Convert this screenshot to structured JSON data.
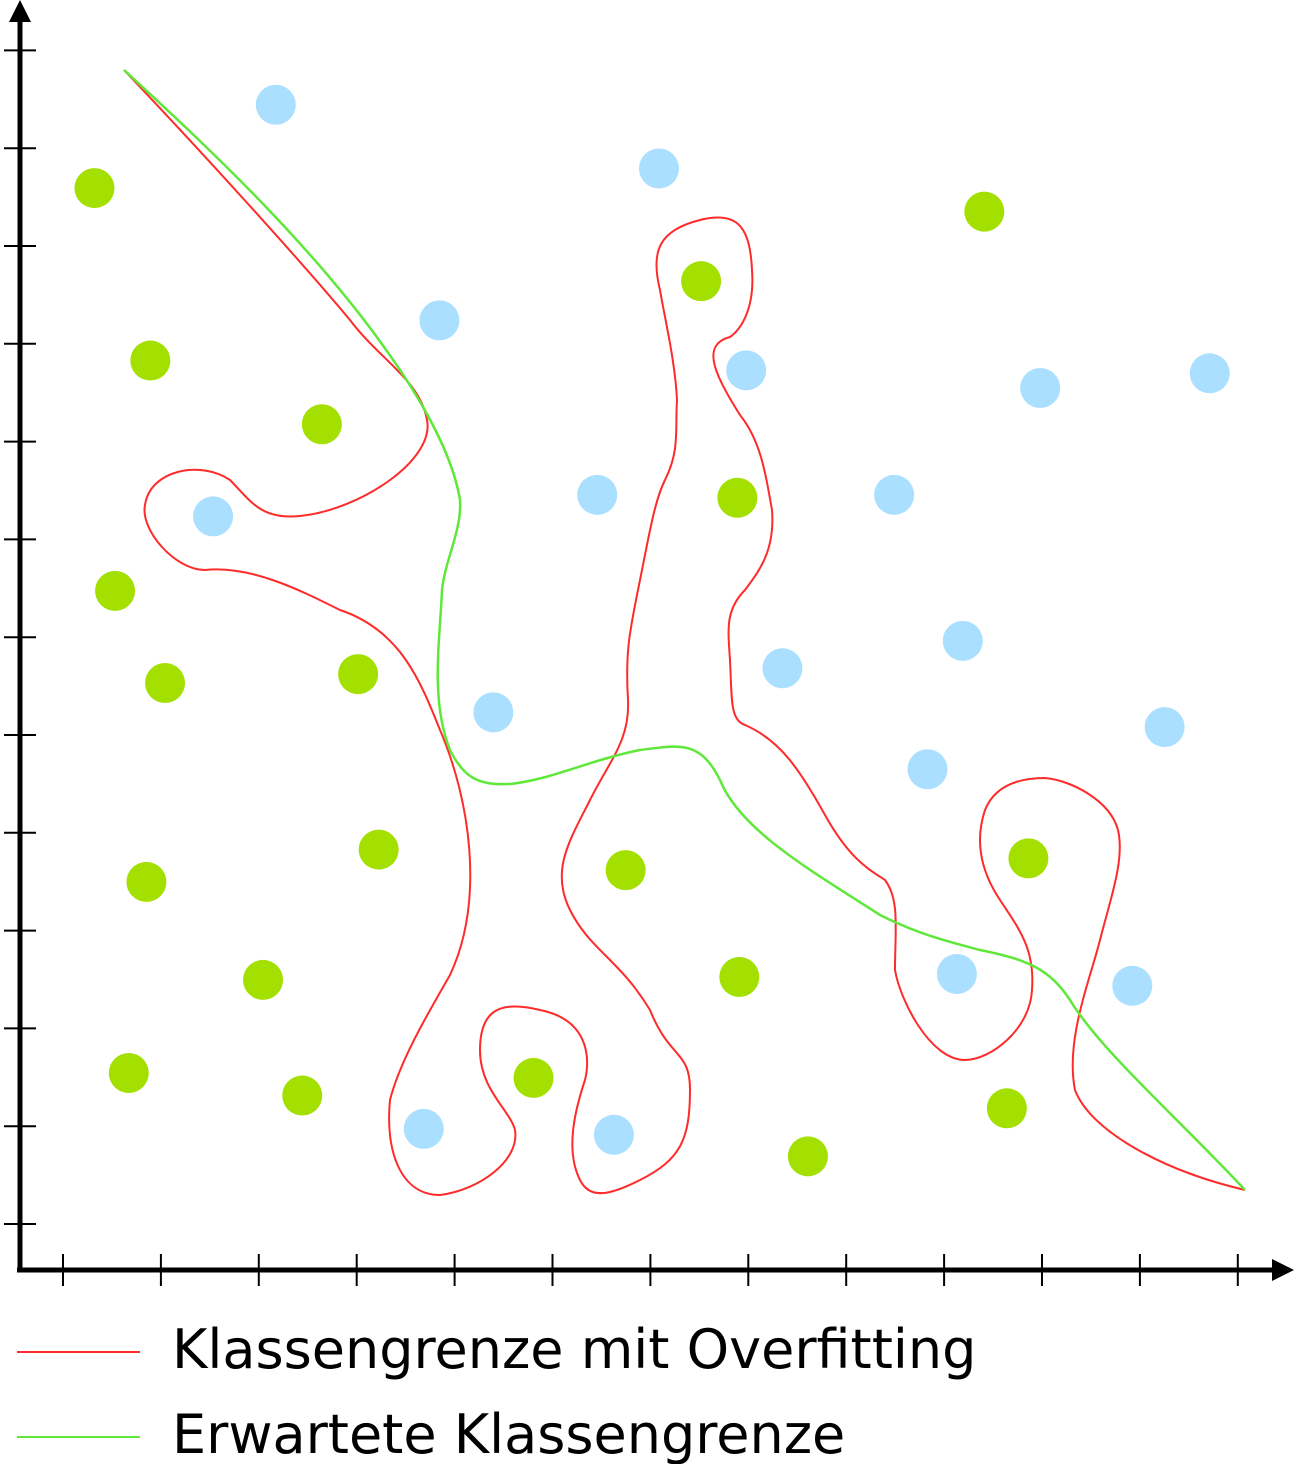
{
  "chart_data": {
    "type": "scatter",
    "title": "",
    "xlabel": "",
    "ylabel": "",
    "xlim": [
      0,
      12.9
    ],
    "ylim": [
      0,
      12.9
    ],
    "grid": false,
    "tick_labels": false,
    "legend_placement": "bottom",
    "point_series": [
      {
        "color": "#aadfff",
        "points": [
          [
            2.61,
            11.89
          ],
          [
            6.52,
            11.24
          ],
          [
            4.28,
            9.69
          ],
          [
            7.41,
            9.18
          ],
          [
            10.41,
            9.0
          ],
          [
            12.14,
            9.15
          ],
          [
            1.97,
            7.69
          ],
          [
            5.89,
            7.91
          ],
          [
            8.92,
            7.91
          ],
          [
            9.62,
            6.42
          ],
          [
            7.78,
            6.14
          ],
          [
            4.83,
            5.69
          ],
          [
            11.68,
            5.54
          ],
          [
            9.26,
            5.11
          ],
          [
            9.56,
            3.02
          ],
          [
            11.35,
            2.9
          ],
          [
            4.12,
            1.44
          ],
          [
            6.06,
            1.38
          ]
        ]
      },
      {
        "color": "#a3e000",
        "points": [
          [
            0.76,
            11.04
          ],
          [
            9.84,
            10.8
          ],
          [
            6.95,
            10.09
          ],
          [
            1.33,
            9.28
          ],
          [
            3.08,
            8.63
          ],
          [
            7.32,
            7.88
          ],
          [
            0.97,
            6.93
          ],
          [
            1.48,
            5.99
          ],
          [
            3.45,
            6.08
          ],
          [
            3.66,
            4.29
          ],
          [
            6.18,
            4.08
          ],
          [
            1.29,
            3.96
          ],
          [
            10.29,
            4.2
          ],
          [
            2.48,
            2.96
          ],
          [
            7.34,
            2.99
          ],
          [
            1.11,
            2.01
          ],
          [
            2.88,
            1.78
          ],
          [
            5.24,
            1.96
          ],
          [
            10.07,
            1.65
          ],
          [
            8.04,
            1.16
          ]
        ]
      }
    ],
    "series": [
      {
        "name": "Klassengrenze mit Overfitting",
        "color": "#ff2a2a"
      },
      {
        "name": "Erwartete Klassengrenze",
        "color": "#5fe83a"
      }
    ]
  }
}
